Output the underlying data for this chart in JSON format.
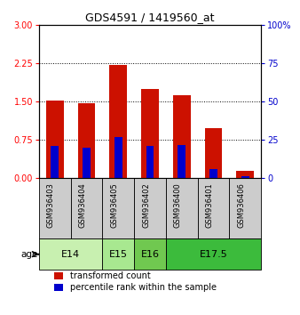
{
  "title": "GDS4591 / 1419560_at",
  "samples": [
    "GSM936403",
    "GSM936404",
    "GSM936405",
    "GSM936402",
    "GSM936400",
    "GSM936401",
    "GSM936406"
  ],
  "transformed_count": [
    1.52,
    1.47,
    2.22,
    1.75,
    1.62,
    0.97,
    0.13
  ],
  "percentile_rank_scaled": [
    0.62,
    0.6,
    0.8,
    0.63,
    0.65,
    0.18,
    0.04
  ],
  "age_groups": [
    {
      "label": "E14",
      "span": [
        0,
        2
      ],
      "color": "#c8f0b0"
    },
    {
      "label": "E15",
      "span": [
        2,
        3
      ],
      "color": "#a8e890"
    },
    {
      "label": "E16",
      "span": [
        3,
        4
      ],
      "color": "#70c850"
    },
    {
      "label": "E17.5",
      "span": [
        4,
        7
      ],
      "color": "#3cbb3c"
    }
  ],
  "ylim_left": [
    0,
    3
  ],
  "ylim_right": [
    0,
    100
  ],
  "yticks_left": [
    0,
    0.75,
    1.5,
    2.25,
    3
  ],
  "yticks_right": [
    0,
    25,
    50,
    75,
    100
  ],
  "bar_color_red": "#cc1100",
  "bar_color_blue": "#0000cc",
  "bar_width": 0.55,
  "blue_bar_width": 0.25,
  "sample_bg_color": "#cccccc",
  "legend_red_label": "transformed count",
  "legend_blue_label": "percentile rank within the sample"
}
